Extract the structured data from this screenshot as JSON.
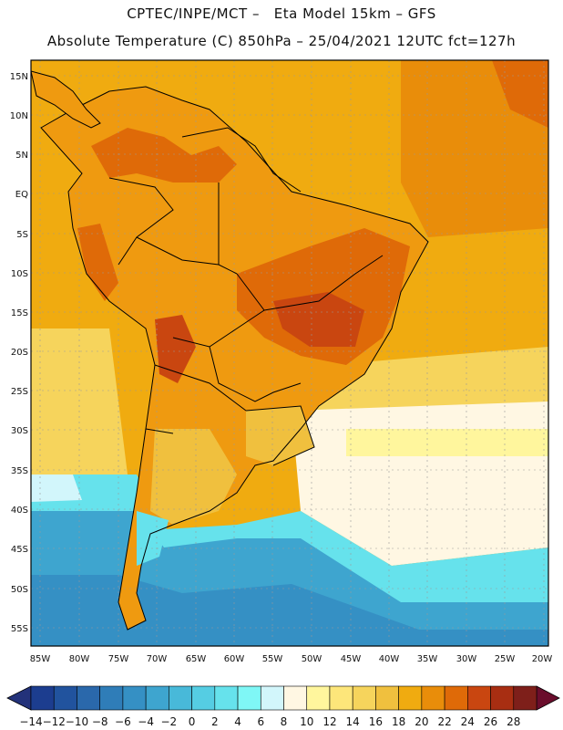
{
  "header": {
    "line1": "CPTEC/INPE/MCT –   Eta Model 15km – GFS",
    "line2": "Absolute Temperature (C) 850hPa – 25/04/2021 12UTC fct=127h"
  },
  "axes": {
    "lat_ticks": [
      "15N",
      "10N",
      "5N",
      "EQ",
      "5S",
      "10S",
      "15S",
      "20S",
      "25S",
      "30S",
      "35S",
      "40S",
      "45S",
      "50S",
      "55S"
    ],
    "lon_ticks": [
      "85W",
      "80W",
      "75W",
      "70W",
      "65W",
      "60W",
      "55W",
      "50W",
      "45W",
      "40W",
      "35W",
      "30W",
      "25W",
      "20W"
    ]
  },
  "colorbar": {
    "labels": [
      "−14",
      "−12",
      "−10",
      "−8",
      "−6",
      "−4",
      "−2",
      "0",
      "2",
      "4",
      "6",
      "8",
      "10",
      "12",
      "14",
      "16",
      "18",
      "20",
      "22",
      "24",
      "26",
      "28"
    ],
    "colors": [
      "#1c3d8f",
      "#21539e",
      "#2a68ab",
      "#2f7db8",
      "#3590c4",
      "#3ea5cf",
      "#48b9d9",
      "#55cde3",
      "#66e2ec",
      "#7ff7f6",
      "#d2f6fb",
      "#fff7e3",
      "#fff69d",
      "#fde67a",
      "#f6d45c",
      "#f0c03e",
      "#f0ab10",
      "#e98d0a",
      "#df6a08",
      "#c94610",
      "#a82e12",
      "#7e1f1a"
    ],
    "left_arrow": "#23327a",
    "right_arrow": "#6a0d2c"
  },
  "theme": {
    "ocean_warm": "#f0ab10",
    "land": "#ef9a10",
    "hot": "#df6a08",
    "cool_pale": "#fff7e3",
    "cold_cyan": "#66e2ec",
    "cold_blue": "#3ea5cf",
    "border": "#000000"
  }
}
